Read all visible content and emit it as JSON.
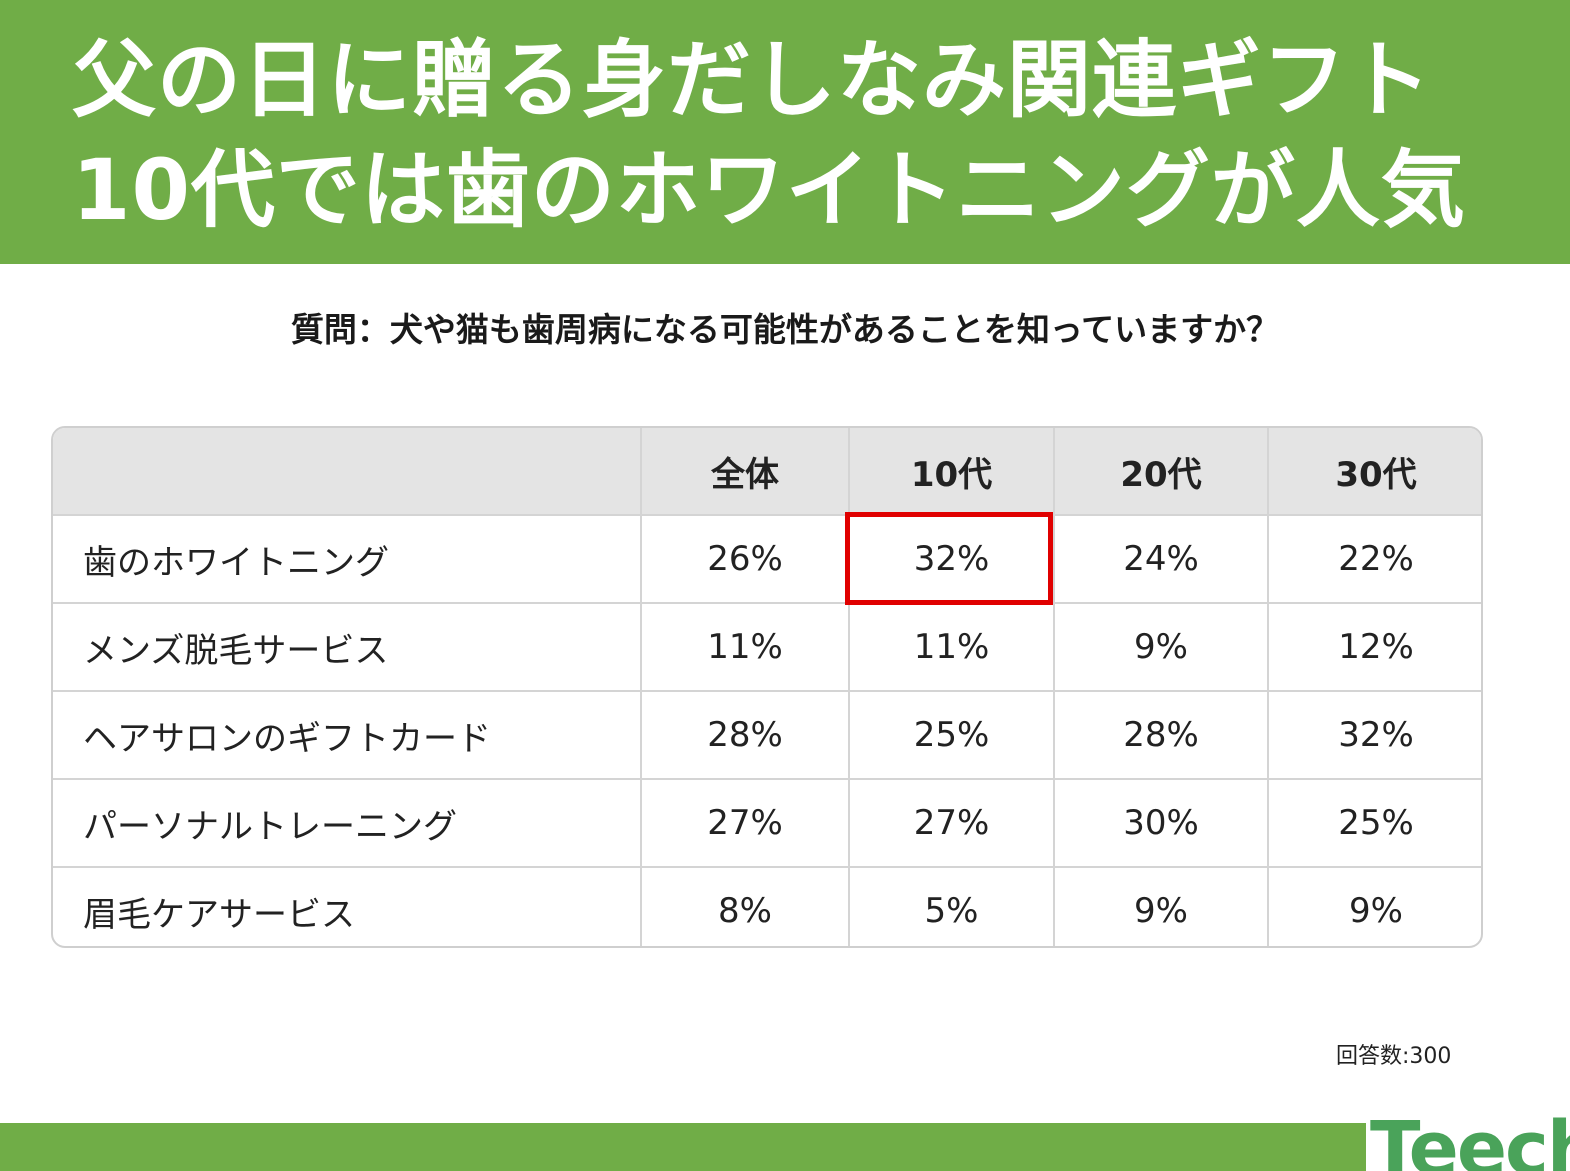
{
  "banner": {
    "line1": "父の日に贈る身だしなみ関連ギフト",
    "line2": "10代では歯のホワイトニングが人気"
  },
  "question": "質問：犬や猫も歯周病になる可能性があることを知っていますか？",
  "chart_data": {
    "type": "table",
    "columns": [
      "",
      "全体",
      "10代",
      "20代",
      "30代"
    ],
    "rows": [
      {
        "label": "歯のホワイトニング",
        "values": [
          "26%",
          "32%",
          "24%",
          "22%"
        ]
      },
      {
        "label": "メンズ脱毛サービス",
        "values": [
          "11%",
          "11%",
          "9%",
          "12%"
        ]
      },
      {
        "label": "ヘアサロンのギフトカード",
        "values": [
          "28%",
          "25%",
          "28%",
          "32%"
        ]
      },
      {
        "label": "パーソナルトレーニング",
        "values": [
          "27%",
          "27%",
          "30%",
          "25%"
        ]
      },
      {
        "label": "眉毛ケアサービス",
        "values": [
          "8%",
          "5%",
          "9%",
          "9%"
        ]
      }
    ],
    "highlighted_cell": {
      "row": "歯のホワイトニング",
      "column": "10代",
      "color": "#e00000"
    }
  },
  "respondents": "回答数:300",
  "logo": {
    "text": "Teech"
  },
  "colors": {
    "brand_green": "#70ad47",
    "header_gray": "#e4e4e4",
    "highlight_red": "#e00000"
  }
}
